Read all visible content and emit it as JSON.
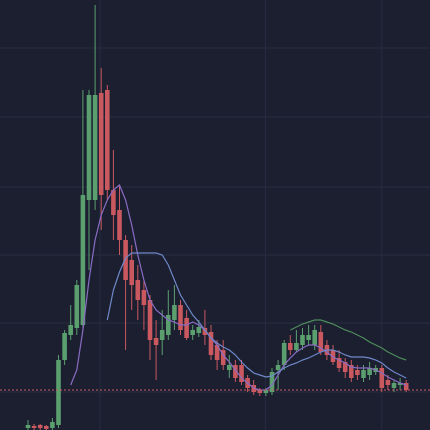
{
  "chart_data": {
    "type": "candlestick",
    "categories": [
      null,
      null,
      null,
      null,
      null,
      null,
      null,
      null,
      null,
      null,
      null,
      null,
      null,
      null,
      null,
      null,
      null,
      null,
      null,
      null,
      null,
      null,
      null,
      null,
      null,
      null,
      null,
      null,
      null,
      null,
      null,
      null,
      null,
      null,
      null,
      null,
      null,
      null,
      null,
      null,
      null,
      null,
      null,
      null,
      null,
      null,
      null,
      null,
      null,
      null,
      null,
      null,
      null,
      null,
      null,
      null,
      null,
      null,
      null,
      null,
      null,
      null,
      null
    ],
    "open": [
      2,
      4,
      5,
      4,
      2,
      5,
      70,
      95,
      102,
      105,
      230,
      230,
      337,
      340,
      240,
      220,
      190,
      170,
      150,
      140,
      130,
      92,
      90,
      95,
      110,
      125,
      112,
      95,
      97,
      102,
      98,
      85,
      80,
      60,
      65,
      65,
      52,
      45,
      40,
      37,
      38,
      60,
      65,
      87,
      80,
      85,
      90,
      85,
      98,
      85,
      80,
      72,
      68,
      65,
      60,
      52,
      55,
      58,
      62,
      50,
      42,
      45,
      47
    ],
    "high": [
      10,
      6,
      6,
      5,
      12,
      75,
      100,
      125,
      150,
      340,
      340,
      425,
      362,
      345,
      280,
      245,
      195,
      185,
      165,
      150,
      135,
      110,
      120,
      140,
      145,
      130,
      120,
      105,
      110,
      120,
      105,
      90,
      90,
      75,
      70,
      70,
      55,
      50,
      42,
      42,
      62,
      70,
      90,
      95,
      100,
      102,
      105,
      105,
      105,
      90,
      85,
      80,
      72,
      70,
      65,
      65,
      68,
      65,
      65,
      55,
      50,
      52,
      50
    ],
    "low": [
      0,
      0,
      0,
      0,
      0,
      2,
      65,
      90,
      95,
      100,
      160,
      220,
      200,
      230,
      190,
      175,
      80,
      120,
      110,
      100,
      70,
      50,
      75,
      90,
      100,
      95,
      90,
      90,
      93,
      85,
      70,
      60,
      60,
      52,
      48,
      45,
      38,
      35,
      34,
      34,
      35,
      40,
      60,
      75,
      78,
      80,
      85,
      80,
      75,
      70,
      65,
      58,
      52,
      48,
      50,
      48,
      50,
      55,
      38,
      40,
      38,
      40,
      38
    ],
    "close": [
      5,
      2,
      2,
      1,
      8,
      70,
      97,
      105,
      145,
      235,
      335,
      335,
      235,
      240,
      215,
      190,
      150,
      145,
      130,
      125,
      90,
      85,
      100,
      115,
      125,
      100,
      92,
      100,
      103,
      95,
      75,
      70,
      65,
      65,
      52,
      48,
      42,
      38,
      37,
      40,
      58,
      65,
      87,
      80,
      87,
      95,
      95,
      100,
      78,
      75,
      68,
      62,
      58,
      52,
      55,
      60,
      62,
      62,
      42,
      45,
      47,
      47,
      40
    ],
    "up_color": "#5b9f6e",
    "down_color": "#c9585f",
    "lines": [
      {
        "color": "#8b6cc4",
        "values": [
          null,
          null,
          null,
          null,
          null,
          null,
          null,
          45,
          60,
          100,
          150,
          190,
          215,
          230,
          240,
          245,
          230,
          205,
          175,
          150,
          130,
          120,
          115,
          110,
          108,
          105,
          105,
          108,
          105,
          100,
          92,
          85,
          75,
          68,
          60,
          52,
          47,
          42,
          40,
          40,
          45,
          55,
          65,
          72,
          78,
          82,
          85,
          85,
          82,
          78,
          73,
          70,
          67,
          63,
          62,
          62,
          62,
          60,
          57,
          53,
          50,
          47,
          45
        ]
      },
      {
        "color": "#6f88c8",
        "values": [
          null,
          null,
          null,
          null,
          null,
          null,
          null,
          null,
          null,
          null,
          null,
          null,
          null,
          110,
          140,
          158,
          172,
          177,
          177,
          177,
          177,
          177,
          175,
          165,
          150,
          135,
          125,
          115,
          108,
          100,
          92,
          87,
          83,
          80,
          75,
          68,
          62,
          57,
          55,
          53,
          54,
          58,
          62,
          65,
          67,
          70,
          72,
          75,
          78,
          80,
          80,
          78,
          75,
          73,
          73,
          73,
          72,
          70,
          67,
          62,
          58,
          55,
          52
        ]
      },
      {
        "color": "#4f8c5c",
        "values": [
          null,
          null,
          null,
          null,
          null,
          null,
          null,
          null,
          null,
          null,
          null,
          null,
          null,
          null,
          null,
          null,
          null,
          null,
          null,
          null,
          null,
          null,
          null,
          null,
          null,
          null,
          null,
          null,
          null,
          null,
          null,
          null,
          null,
          null,
          null,
          null,
          null,
          null,
          null,
          null,
          null,
          null,
          null,
          100,
          103,
          106,
          108,
          110,
          110,
          108,
          106,
          103,
          100,
          98,
          95,
          92,
          88,
          85,
          82,
          78,
          75,
          72,
          70
        ]
      }
    ],
    "ylim": [
      0,
      430
    ],
    "yticks": [
      38,
      107,
      175,
      243,
      313,
      382
    ],
    "xticks": [
      11.8,
      38.9,
      58
    ],
    "grid": true,
    "price_line_color": "#d05a63"
  }
}
